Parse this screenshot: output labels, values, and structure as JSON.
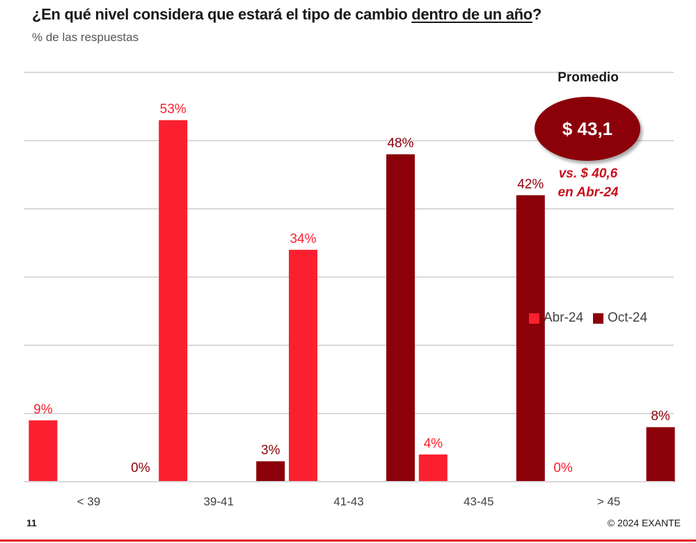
{
  "title_main": "¿En qué nivel considera que estará el tipo de cambio ",
  "title_underlined": "dentro de un año",
  "title_end": "?",
  "subtitle": "% de las respuestas",
  "average": {
    "label": "Promedio",
    "value": "$ 43,1",
    "comparison_line1": "vs. $ 40,6",
    "comparison_line2": "en Abr-24"
  },
  "footer": {
    "page_number": "11",
    "copyright": "© 2024 EXANTE"
  },
  "colors": {
    "abr": "#fa202f",
    "oct": "#8b0009",
    "grid": "#d9d9d9"
  },
  "chart_data": {
    "type": "bar",
    "title": "¿En qué nivel considera que estará el tipo de cambio dentro de un año?",
    "subtitle": "% de las respuestas",
    "xlabel": "",
    "ylabel": "",
    "categories": [
      "< 39",
      "39-41",
      "41-43",
      "43-45",
      "> 45"
    ],
    "series": [
      {
        "name": "Abr-24",
        "values": [
          9,
          53,
          34,
          4,
          0
        ],
        "labels": [
          "9%",
          "53%",
          "34%",
          "4%",
          "0%"
        ]
      },
      {
        "name": "Oct-24",
        "values": [
          0,
          3,
          48,
          42,
          8
        ],
        "labels": [
          "0%",
          "3%",
          "48%",
          "42%",
          "8%"
        ]
      }
    ],
    "ylim": [
      0,
      60
    ],
    "grid": true,
    "legend": "right",
    "unit": "%"
  }
}
